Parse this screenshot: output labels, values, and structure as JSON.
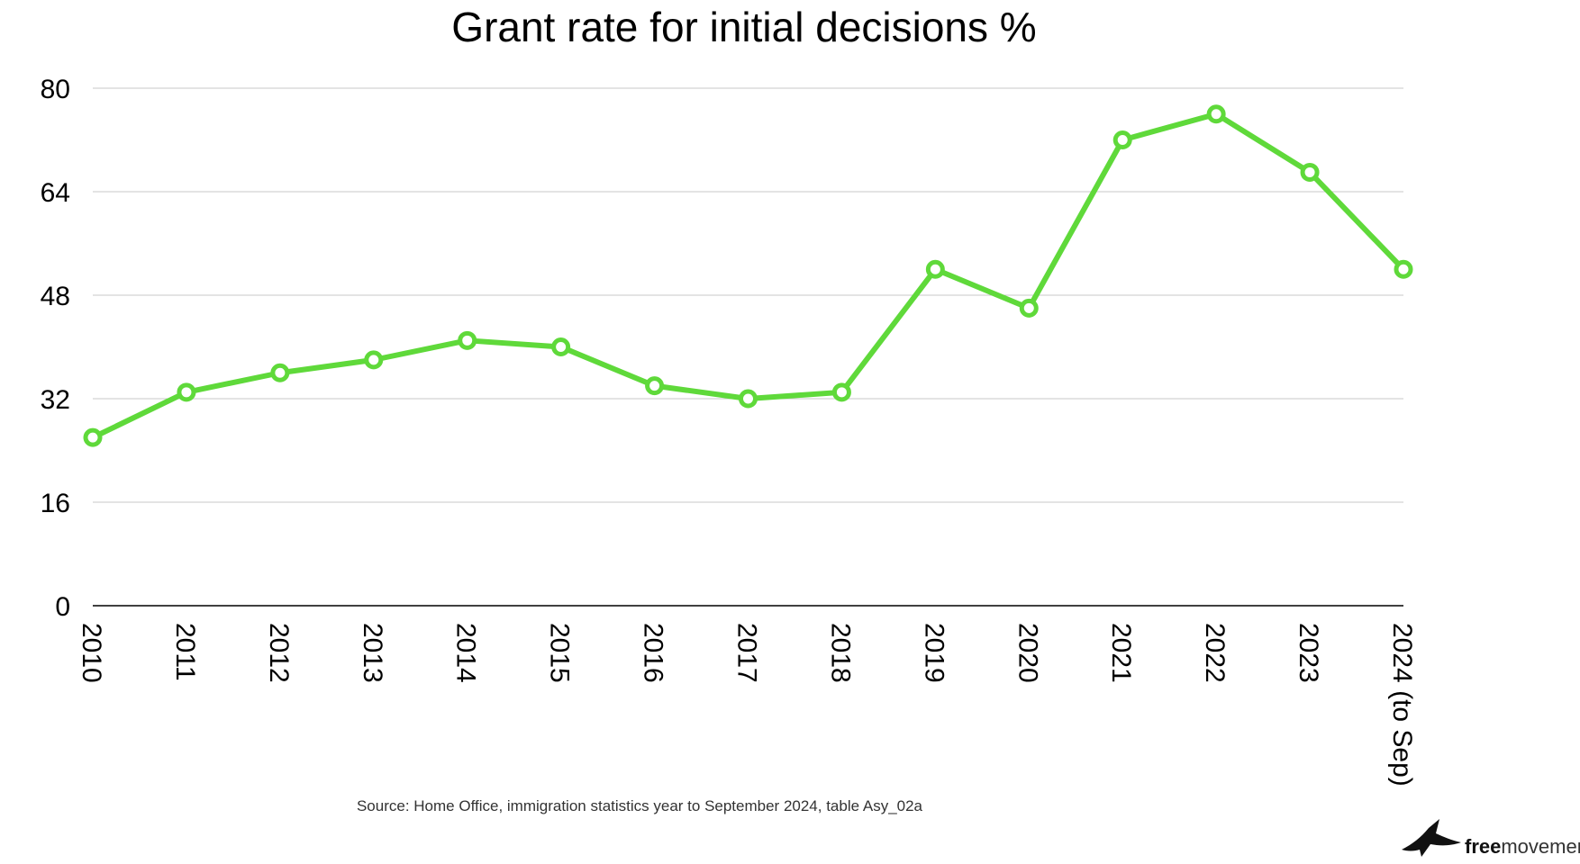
{
  "chart_data": {
    "type": "line",
    "title": "Grant rate for initial decisions %",
    "xlabel": "",
    "ylabel": "",
    "categories": [
      "2010",
      "2011",
      "2012",
      "2013",
      "2014",
      "2015",
      "2016",
      "2017",
      "2018",
      "2019",
      "2020",
      "2021",
      "2022",
      "2023",
      "2024 (to Sep)"
    ],
    "series": [
      {
        "values": [
          26,
          33,
          36,
          38,
          41,
          40,
          34,
          32,
          33,
          52,
          46,
          72,
          76,
          67,
          52
        ]
      }
    ],
    "ylim": [
      0,
      80
    ],
    "yticks": [
      0,
      16,
      32,
      48,
      64,
      80
    ],
    "grid": true,
    "legend": "none",
    "colors": {
      "series": "#5fd93a",
      "marker_fill": "#ffffff",
      "grid": "#c8c8c8",
      "axis": "#000000"
    }
  },
  "source": "Source: Home Office, immigration statistics year to September 2024, table Asy_02a",
  "logo": {
    "icon": "bird-icon",
    "brand_bold": "free",
    "brand_regular": "movement"
  }
}
